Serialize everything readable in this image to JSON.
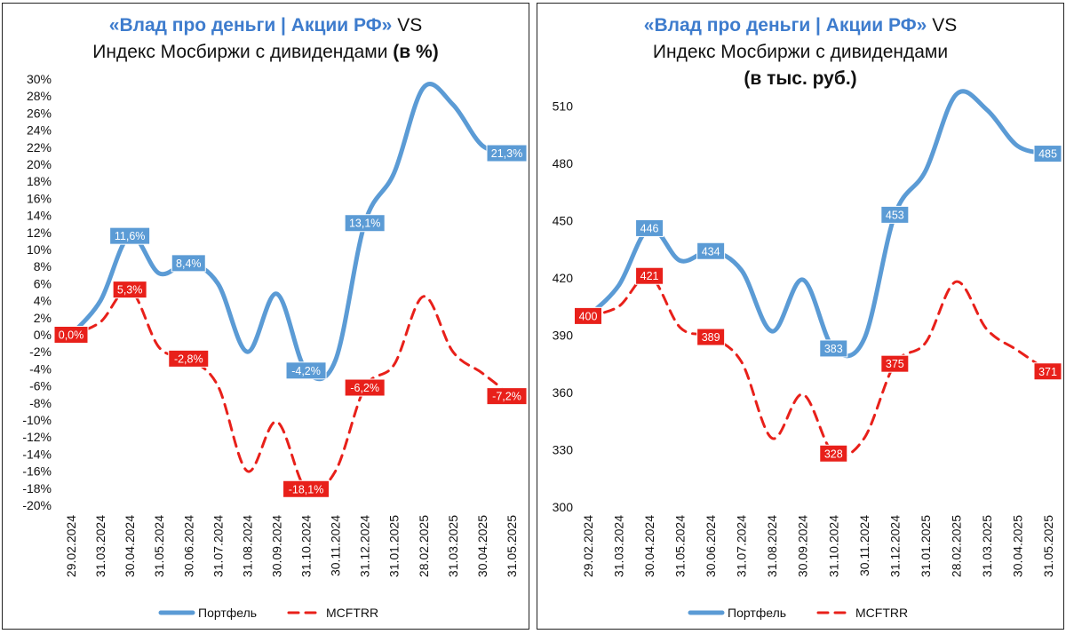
{
  "charts": [
    {
      "title_brand": "«Влад про деньги | Акции РФ»",
      "title_vs": " VS",
      "title_line2": "Индекс Мосбиржи с дивидендами ",
      "title_line2_bold": "(в %)",
      "title_line3": ""
    },
    {
      "title_brand": "«Влад про деньги | Акции РФ»",
      "title_vs": " VS",
      "title_line2": "Индекс Мосбиржи с дивидендами",
      "title_line2_bold": "",
      "title_line3": "(в тыс. руб.)"
    }
  ],
  "chart_data": [
    {
      "type": "line",
      "title": "«Влад про деньги | Акции РФ» VS Индекс Мосбиржи с дивидендами (в %)",
      "categories": [
        "29.02.2024",
        "31.03.2024",
        "30.04.2024",
        "31.05.2024",
        "30.06.2024",
        "31.07.2024",
        "31.08.2024",
        "30.09.2024",
        "31.10.2024",
        "30.11.2024",
        "31.12.2024",
        "31.01.2025",
        "28.02.2025",
        "31.03.2025",
        "30.04.2025",
        "31.05.2025"
      ],
      "ylim": [
        -20,
        30
      ],
      "ytick_step": 2,
      "ytick_suffix": "%",
      "grid": false,
      "legend": "bottom",
      "series": [
        {
          "name": "Портфель",
          "color": "#5b9bd5",
          "dash": false,
          "values": [
            0.0,
            4.0,
            11.6,
            7.2,
            8.4,
            6.0,
            -2.0,
            4.8,
            -4.2,
            -3.0,
            13.1,
            19.0,
            29.0,
            27.0,
            22.2,
            21.3
          ]
        },
        {
          "name": "MCFTRR",
          "color": "#e8201a",
          "dash": true,
          "values": [
            0.0,
            1.5,
            5.3,
            -1.5,
            -2.8,
            -6.0,
            -16.0,
            -10.2,
            -18.1,
            -16.0,
            -6.2,
            -3.5,
            4.5,
            -2.0,
            -4.5,
            -7.2
          ]
        }
      ],
      "data_labels": [
        {
          "series": 0,
          "index": 0,
          "text": "0,0%"
        },
        {
          "series": 0,
          "index": 2,
          "text": "11,6%"
        },
        {
          "series": 0,
          "index": 4,
          "text": "8,4%"
        },
        {
          "series": 0,
          "index": 8,
          "text": "-4,2%"
        },
        {
          "series": 0,
          "index": 10,
          "text": "13,1%"
        },
        {
          "series": 0,
          "index": 15,
          "text": "21,3%"
        },
        {
          "series": 1,
          "index": 0,
          "text": "0,0%"
        },
        {
          "series": 1,
          "index": 2,
          "text": "5,3%"
        },
        {
          "series": 1,
          "index": 4,
          "text": "-2,8%"
        },
        {
          "series": 1,
          "index": 8,
          "text": "-18,1%"
        },
        {
          "series": 1,
          "index": 10,
          "text": "-6,2%"
        },
        {
          "series": 1,
          "index": 15,
          "text": "-7,2%"
        }
      ]
    },
    {
      "type": "line",
      "title": "«Влад про деньги | Акции РФ» VS Индекс Мосбиржи с дивидендами (в тыс. руб.)",
      "categories": [
        "29.02.2024",
        "31.03.2024",
        "30.04.2024",
        "31.05.2024",
        "30.06.2024",
        "31.07.2024",
        "31.08.2024",
        "30.09.2024",
        "31.10.2024",
        "30.11.2024",
        "31.12.2024",
        "31.01.2025",
        "28.02.2025",
        "31.03.2025",
        "30.04.2025",
        "31.05.2025"
      ],
      "ylim": [
        300,
        525
      ],
      "yticks": [
        300,
        330,
        360,
        390,
        420,
        450,
        480,
        510
      ],
      "ytick_suffix": "",
      "grid": false,
      "legend": "bottom",
      "series": [
        {
          "name": "Портфель",
          "color": "#5b9bd5",
          "dash": false,
          "values": [
            400,
            416,
            446,
            429,
            434,
            424,
            392,
            419,
            383,
            388,
            453,
            476,
            516,
            508,
            489,
            485
          ]
        },
        {
          "name": "MCFTRR",
          "color": "#e8201a",
          "dash": true,
          "values": [
            400,
            405,
            421,
            394,
            389,
            376,
            336,
            359,
            328,
            336,
            375,
            386,
            418,
            393,
            382,
            371
          ]
        }
      ],
      "data_labels": [
        {
          "series": 0,
          "index": 0,
          "text": "400"
        },
        {
          "series": 0,
          "index": 2,
          "text": "446"
        },
        {
          "series": 0,
          "index": 4,
          "text": "434"
        },
        {
          "series": 0,
          "index": 8,
          "text": "383"
        },
        {
          "series": 0,
          "index": 10,
          "text": "453"
        },
        {
          "series": 0,
          "index": 15,
          "text": "485"
        },
        {
          "series": 1,
          "index": 0,
          "text": "400"
        },
        {
          "series": 1,
          "index": 2,
          "text": "421"
        },
        {
          "series": 1,
          "index": 4,
          "text": "389"
        },
        {
          "series": 1,
          "index": 8,
          "text": "328"
        },
        {
          "series": 1,
          "index": 10,
          "text": "375"
        },
        {
          "series": 1,
          "index": 15,
          "text": "371"
        }
      ]
    }
  ]
}
